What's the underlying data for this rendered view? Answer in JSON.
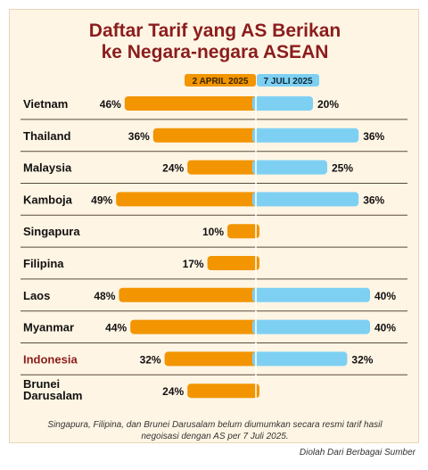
{
  "title_line1": "Daftar Tarif yang AS Berikan",
  "title_line2": "ke Negara-negara ASEAN",
  "footnote_line1": "Singapura, Filipina, dan Brunei Darusalam belum diumumkan secara resmi tarif hasil",
  "footnote_line2": "negoisasi dengan AS per 7 Juli 2025.",
  "source": "Diolah Dari Berbagai Sumber",
  "colors": {
    "left_bar": "#f29500",
    "right_bar": "#7ed0f3",
    "highlight_label": "#8b1d1d",
    "label": "#111111",
    "divider": "#5a4a3a"
  },
  "chart_data": {
    "type": "bar",
    "orientation": "horizontal-diverging",
    "categories": [
      "Vietnam",
      "Thailand",
      "Malaysia",
      "Kamboja",
      "Singapura",
      "Filipina",
      "Laos",
      "Myanmar",
      "Indonesia",
      "Brunei Darusalam"
    ],
    "highlight_category": "Indonesia",
    "series": [
      {
        "name": "2 APRIL 2025",
        "values": [
          46,
          36,
          24,
          49,
          10,
          17,
          48,
          44,
          32,
          24
        ],
        "labels": [
          "46%",
          "36%",
          "24%",
          "49%",
          "10%",
          "17%",
          "48%",
          "44%",
          "32%",
          "24%"
        ]
      },
      {
        "name": "7 JULI 2025",
        "values": [
          20,
          36,
          25,
          36,
          null,
          null,
          40,
          40,
          32,
          null
        ],
        "labels": [
          "20%",
          "36%",
          "25%",
          "36%",
          "",
          "",
          "40%",
          "40%",
          "32%",
          ""
        ]
      }
    ],
    "xlim": [
      0,
      50
    ]
  }
}
